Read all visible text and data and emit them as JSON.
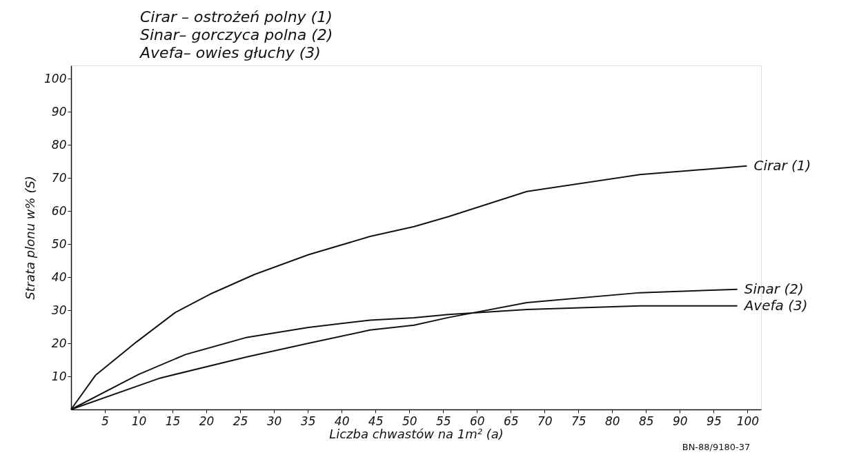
{
  "chart_data": {
    "type": "line",
    "xlabel": "Liczba chwastów na 1m² (a)",
    "ylabel": "Strata plonu w% (S)",
    "xlim": [
      0,
      102
    ],
    "ylim": [
      0,
      104
    ],
    "xticks": [
      5,
      10,
      15,
      20,
      25,
      30,
      35,
      40,
      45,
      50,
      55,
      60,
      65,
      70,
      75,
      80,
      85,
      90,
      95,
      100
    ],
    "yticks": [
      10,
      20,
      30,
      40,
      50,
      60,
      70,
      80,
      90,
      100
    ],
    "grid": false,
    "legend": false,
    "marker": "none",
    "line_style": "solid",
    "series": [
      {
        "name": "Cirar (1)",
        "color": "#111111",
        "x": [
          0,
          3.6,
          9.6,
          15.4,
          20.5,
          27.1,
          35.1,
          44.2,
          50.7,
          55.8,
          67.4,
          84.1,
          99.9
        ],
        "values": [
          0,
          10.3,
          20.3,
          29.3,
          34.8,
          40.8,
          46.8,
          52.3,
          55.3,
          58.3,
          65.9,
          71,
          73.6
        ]
      },
      {
        "name": "Sinar (2)",
        "color": "#111111",
        "x": [
          0,
          13.2,
          26,
          35.1,
          44.2,
          50.7,
          55.8,
          67.4,
          84.1,
          98.5
        ],
        "values": [
          0,
          9.5,
          15.9,
          20,
          24,
          25.5,
          27.8,
          32.3,
          35.3,
          36.3
        ]
      },
      {
        "name": "Avefa (3)",
        "color": "#111111",
        "x": [
          0,
          10,
          16.9,
          26,
          35.1,
          44.2,
          50.7,
          55.8,
          67.4,
          84.1,
          98.5
        ],
        "values": [
          0,
          10.6,
          16.6,
          21.8,
          24.8,
          27,
          27.7,
          28.7,
          30.2,
          31.3,
          31.3
        ]
      }
    ],
    "annotations": [
      "Cirar – ostrożeń polny (1)",
      "Sinar– gorczyca polna (2)",
      "Avefa– owies głuchy (3)",
      "BN-88/9180-37"
    ]
  }
}
